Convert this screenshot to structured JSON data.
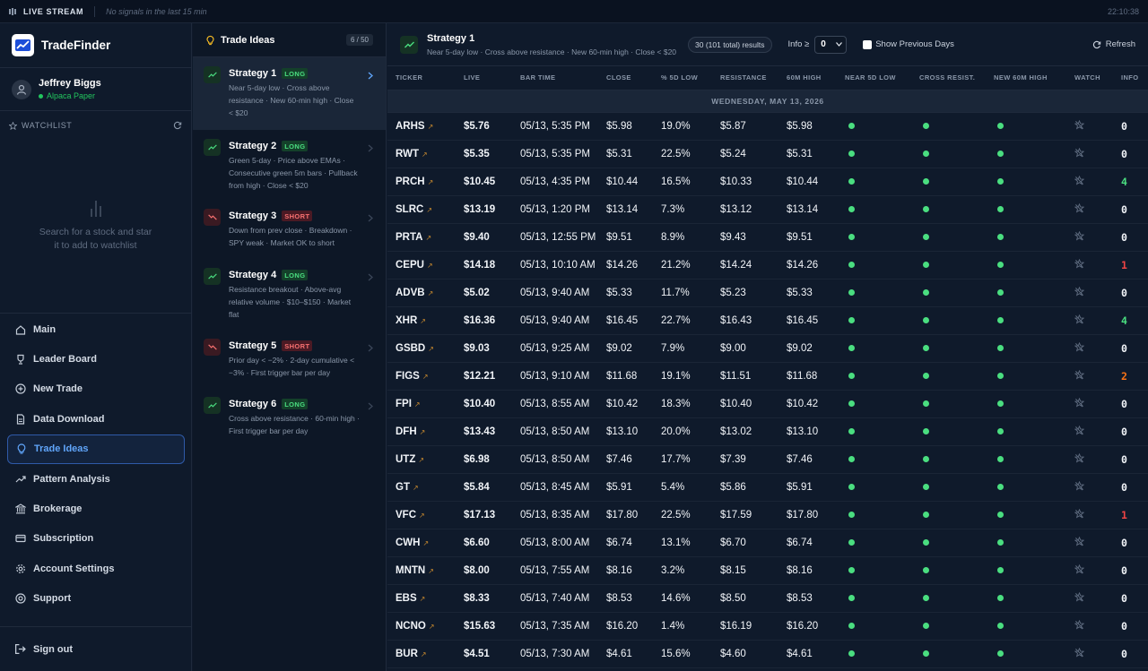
{
  "topbar": {
    "label": "LIVE STREAM",
    "status": "No signals in the last 15 min",
    "time": "22:10:38"
  },
  "brand": {
    "name": "TradeFinder"
  },
  "user": {
    "name": "Jeffrey Biggs",
    "account": "Alpaca Paper"
  },
  "watchlist": {
    "title": "WATCHLIST",
    "empty_message": "Search for a stock and star it to add to watchlist"
  },
  "nav": [
    {
      "label": "Main",
      "icon": "home-icon"
    },
    {
      "label": "Leader Board",
      "icon": "trophy-icon"
    },
    {
      "label": "New Trade",
      "icon": "plus-circle-icon"
    },
    {
      "label": "Data Download",
      "icon": "file-icon"
    },
    {
      "label": "Trade Ideas",
      "icon": "lightbulb-icon",
      "active": true
    },
    {
      "label": "Pattern Analysis",
      "icon": "trend-icon"
    },
    {
      "label": "Brokerage",
      "icon": "bank-icon"
    },
    {
      "label": "Subscription",
      "icon": "card-icon"
    },
    {
      "label": "Account Settings",
      "icon": "gear-icon"
    },
    {
      "label": "Support",
      "icon": "lifebuoy-icon"
    }
  ],
  "signout": {
    "label": "Sign out"
  },
  "ideas": {
    "title": "Trade Ideas",
    "count": "6 / 50",
    "strategies": [
      {
        "name": "Strategy 1",
        "side": "LONG",
        "desc": "Near 5-day low · Cross above resistance · New 60-min high · Close < $20",
        "active": true
      },
      {
        "name": "Strategy 2",
        "side": "LONG",
        "desc": "Green 5-day · Price above EMAs · Consecutive green 5m bars · Pullback from high · Close < $20"
      },
      {
        "name": "Strategy 3",
        "side": "SHORT",
        "desc": "Down from prev close · Breakdown · SPY weak · Market OK to short"
      },
      {
        "name": "Strategy 4",
        "side": "LONG",
        "desc": "Resistance breakout · Above-avg relative volume · $10–$150 · Market flat"
      },
      {
        "name": "Strategy 5",
        "side": "SHORT",
        "desc": "Prior day < −2% · 2-day cumulative < −3% · First trigger bar per day"
      },
      {
        "name": "Strategy 6",
        "side": "LONG",
        "desc": "Cross above resistance · 60-min high · First trigger bar per day"
      }
    ]
  },
  "main": {
    "title": "Strategy 1",
    "desc": "Near 5-day low · Cross above resistance · New 60-min high · Close < $20",
    "results": "30 (101 total) results",
    "info_label": "Info ≥",
    "info_value": "0",
    "show_prev_label": "Show Previous Days",
    "refresh_label": "Refresh",
    "columns": [
      "TICKER",
      "LIVE",
      "BAR TIME",
      "CLOSE",
      "% 5D LOW",
      "RESISTANCE",
      "60M HIGH",
      "NEAR 5D LOW",
      "CROSS RESIST.",
      "NEW 60M HIGH",
      "WATCH",
      "INFO"
    ],
    "date_label": "WEDNESDAY, MAY 13, 2026",
    "rows": [
      {
        "ticker": "ARHS",
        "live": "$5.76",
        "time": "05/13, 5:35 PM",
        "close": "$5.98",
        "pct": "19.0%",
        "res": "$5.87",
        "high": "$5.98",
        "info": "0"
      },
      {
        "ticker": "RWT",
        "live": "$5.35",
        "time": "05/13, 5:35 PM",
        "close": "$5.31",
        "pct": "22.5%",
        "res": "$5.24",
        "high": "$5.31",
        "info": "0"
      },
      {
        "ticker": "PRCH",
        "live": "$10.45",
        "time": "05/13, 4:35 PM",
        "close": "$10.44",
        "pct": "16.5%",
        "res": "$10.33",
        "high": "$10.44",
        "info": "4"
      },
      {
        "ticker": "SLRC",
        "live": "$13.19",
        "time": "05/13, 1:20 PM",
        "close": "$13.14",
        "pct": "7.3%",
        "res": "$13.12",
        "high": "$13.14",
        "info": "0"
      },
      {
        "ticker": "PRTA",
        "live": "$9.40",
        "time": "05/13, 12:55 PM",
        "close": "$9.51",
        "pct": "8.9%",
        "res": "$9.43",
        "high": "$9.51",
        "info": "0"
      },
      {
        "ticker": "CEPU",
        "live": "$14.18",
        "time": "05/13, 10:10 AM",
        "close": "$14.26",
        "pct": "21.2%",
        "res": "$14.24",
        "high": "$14.26",
        "info": "1"
      },
      {
        "ticker": "ADVB",
        "live": "$5.02",
        "time": "05/13, 9:40 AM",
        "close": "$5.33",
        "pct": "11.7%",
        "res": "$5.23",
        "high": "$5.33",
        "info": "0"
      },
      {
        "ticker": "XHR",
        "live": "$16.36",
        "time": "05/13, 9:40 AM",
        "close": "$16.45",
        "pct": "22.7%",
        "res": "$16.43",
        "high": "$16.45",
        "info": "4"
      },
      {
        "ticker": "GSBD",
        "live": "$9.03",
        "time": "05/13, 9:25 AM",
        "close": "$9.02",
        "pct": "7.9%",
        "res": "$9.00",
        "high": "$9.02",
        "info": "0"
      },
      {
        "ticker": "FIGS",
        "live": "$12.21",
        "time": "05/13, 9:10 AM",
        "close": "$11.68",
        "pct": "19.1%",
        "res": "$11.51",
        "high": "$11.68",
        "info": "2"
      },
      {
        "ticker": "FPI",
        "live": "$10.40",
        "time": "05/13, 8:55 AM",
        "close": "$10.42",
        "pct": "18.3%",
        "res": "$10.40",
        "high": "$10.42",
        "info": "0"
      },
      {
        "ticker": "DFH",
        "live": "$13.43",
        "time": "05/13, 8:50 AM",
        "close": "$13.10",
        "pct": "20.0%",
        "res": "$13.02",
        "high": "$13.10",
        "info": "0"
      },
      {
        "ticker": "UTZ",
        "live": "$6.98",
        "time": "05/13, 8:50 AM",
        "close": "$7.46",
        "pct": "17.7%",
        "res": "$7.39",
        "high": "$7.46",
        "info": "0"
      },
      {
        "ticker": "GT",
        "live": "$5.84",
        "time": "05/13, 8:45 AM",
        "close": "$5.91",
        "pct": "5.4%",
        "res": "$5.86",
        "high": "$5.91",
        "info": "0"
      },
      {
        "ticker": "VFC",
        "live": "$17.13",
        "time": "05/13, 8:35 AM",
        "close": "$17.80",
        "pct": "22.5%",
        "res": "$17.59",
        "high": "$17.80",
        "info": "1"
      },
      {
        "ticker": "CWH",
        "live": "$6.60",
        "time": "05/13, 8:00 AM",
        "close": "$6.74",
        "pct": "13.1%",
        "res": "$6.70",
        "high": "$6.74",
        "info": "0"
      },
      {
        "ticker": "MNTN",
        "live": "$8.00",
        "time": "05/13, 7:55 AM",
        "close": "$8.16",
        "pct": "3.2%",
        "res": "$8.15",
        "high": "$8.16",
        "info": "0"
      },
      {
        "ticker": "EBS",
        "live": "$8.33",
        "time": "05/13, 7:40 AM",
        "close": "$8.53",
        "pct": "14.6%",
        "res": "$8.50",
        "high": "$8.53",
        "info": "0"
      },
      {
        "ticker": "NCNO",
        "live": "$15.63",
        "time": "05/13, 7:35 AM",
        "close": "$16.20",
        "pct": "1.4%",
        "res": "$16.19",
        "high": "$16.20",
        "info": "0"
      },
      {
        "ticker": "BUR",
        "live": "$4.51",
        "time": "05/13, 7:30 AM",
        "close": "$4.61",
        "pct": "15.6%",
        "res": "$4.60",
        "high": "$4.61",
        "info": "0"
      }
    ]
  }
}
